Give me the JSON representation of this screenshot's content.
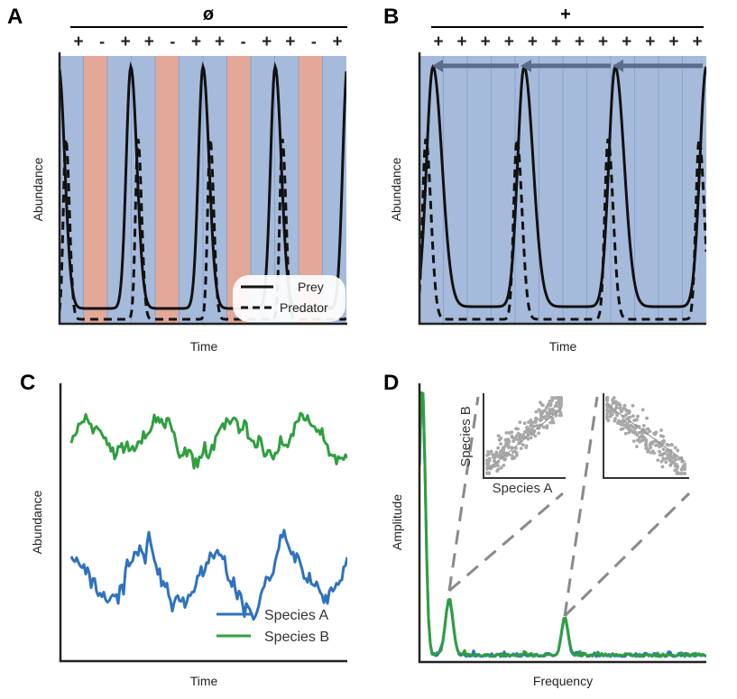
{
  "colors": {
    "blue_bg": "#a6bbdb",
    "red_bg": "#e4a898",
    "divider": "#8aa2cc",
    "line": "#111111",
    "arrow": "#5a6d8c",
    "species_a": "#2e72c0",
    "species_b": "#2f9f3f",
    "scatter": "#a8a8a8",
    "dash_gray": "#8a8a8a"
  },
  "chart_data": [
    {
      "panel": "A",
      "type": "line",
      "title": "ø",
      "xlabel": "Time",
      "ylabel": "Abundance",
      "environment_signs": [
        "+",
        "-",
        "+",
        "+",
        "-",
        "+",
        "+",
        "-",
        "+",
        "+",
        "-",
        "+"
      ],
      "legend": [
        "Prey",
        "Predator"
      ],
      "legend_position": "bottom-right",
      "series": [
        {
          "name": "Prey",
          "style": "solid",
          "peaks_at_period_fraction": 0.31,
          "period_in_env_cycles": 3
        },
        {
          "name": "Predator",
          "style": "dashed",
          "peaks_at_period_fraction": 0.43,
          "period_in_env_cycles": 3
        }
      ]
    },
    {
      "panel": "B",
      "type": "line",
      "title": "+",
      "xlabel": "Time",
      "ylabel": "Abundance",
      "environment_signs": [
        "+",
        "+",
        "+",
        "+",
        "+",
        "+",
        "+",
        "+",
        "+",
        "+",
        "+",
        "+"
      ],
      "annotations": [
        "three leftward arrows at the top, one per prey peak"
      ],
      "series": [
        {
          "name": "Prey",
          "style": "solid"
        },
        {
          "name": "Predator",
          "style": "dashed"
        }
      ]
    },
    {
      "panel": "C",
      "type": "line",
      "xlabel": "Time",
      "ylabel": "Abundance",
      "legend": [
        "Species A",
        "Species B"
      ],
      "legend_position": "bottom-right",
      "series": [
        {
          "name": "Species A",
          "level": "low",
          "cycles": 4
        },
        {
          "name": "Species B",
          "level": "high",
          "cycles": 4
        }
      ]
    },
    {
      "panel": "D",
      "type": "line",
      "xlabel": "Frequency",
      "ylabel": "Amplitude",
      "series": [
        {
          "name": "Species A",
          "peaks_at_x_fraction": [
            0.0,
            0.125,
            0.51
          ]
        },
        {
          "name": "Species B",
          "peaks_at_x_fraction": [
            0.0,
            0.125,
            0.51
          ]
        }
      ],
      "insets": [
        {
          "type": "scatter",
          "xlabel": "Species A",
          "ylabel": "Species B",
          "correlation": "positive"
        },
        {
          "type": "scatter",
          "xlabel": "",
          "ylabel": "",
          "correlation": "negative"
        }
      ]
    }
  ],
  "labels": {
    "panel_a": "A",
    "panel_b": "B",
    "panel_c": "C",
    "panel_d": "D",
    "a_top": "ø",
    "b_top": "+",
    "a_xlabel": "Time",
    "a_ylabel": "Abundance",
    "b_xlabel": "Time",
    "b_ylabel": "Abundance",
    "c_xlabel": "Time",
    "c_ylabel": "Abundance",
    "d_xlabel": "Frequency",
    "d_ylabel": "Amplitude",
    "legend_prey": "Prey",
    "legend_predator": "Predator",
    "legend_species_a": "Species A",
    "legend_species_b": "Species B",
    "inset_xlabel": "Species A",
    "inset_ylabel": "Species B"
  }
}
